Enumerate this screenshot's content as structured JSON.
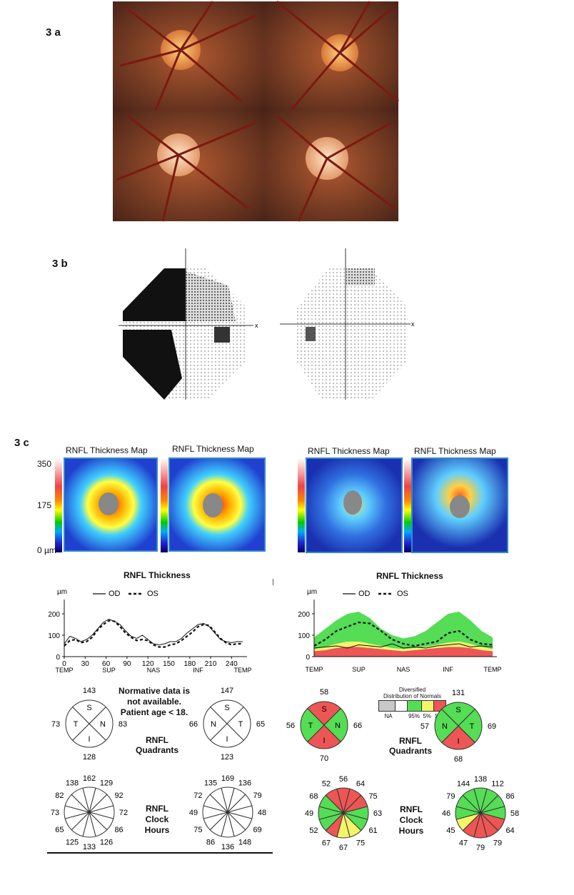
{
  "labels": {
    "a": "3 a",
    "b": "3 b",
    "c": "3 c"
  },
  "fundus": {
    "count": 4
  },
  "thickness_maps": {
    "title": "RNFL Thickness Map",
    "scale_ticks": [
      "350",
      "175",
      "0 µm"
    ]
  },
  "left_block": {
    "chart_title": "RNFL Thickness",
    "unit": "µm",
    "legend_od": "OD",
    "legend_os": "OS",
    "note_lines": [
      "Normative data is",
      "not available.",
      "Patient age < 18."
    ],
    "quadrants_label": [
      "RNFL",
      "Quadrants"
    ],
    "clock_label": [
      "RNFL",
      "Clock",
      "Hours"
    ],
    "od_quadrants": {
      "S": "143",
      "N": "83",
      "I": "128",
      "T": "73"
    },
    "os_quadrants": {
      "S": "147",
      "T": "65",
      "I": "123",
      "N": "66"
    },
    "od_clock": [
      "162",
      "129",
      "92",
      "72",
      "86",
      "126",
      "133",
      "125",
      "65",
      "73",
      "82",
      "138"
    ],
    "os_clock": [
      "169",
      "136",
      "79",
      "48",
      "69",
      "148",
      "136",
      "86",
      "75",
      "49",
      "72",
      "135"
    ]
  },
  "right_block": {
    "chart_title": "RNFL Thickness",
    "unit": "µm",
    "legend_od": "OD",
    "legend_os": "OS",
    "dist_title": [
      "Diversified",
      "Distribution of Normals"
    ],
    "dist_labels": [
      "NA",
      "95%",
      "5%",
      "1%"
    ],
    "quadrants_label": [
      "RNFL",
      "Quadrants"
    ],
    "clock_label": [
      "RNFL",
      "Clock",
      "Hours"
    ],
    "od_quadrants": {
      "S": "58",
      "N": "66",
      "I": "70",
      "T": "56"
    },
    "os_quadrants": {
      "S": "131",
      "T": "69",
      "I": "68",
      "N": "57"
    },
    "od_clock": [
      "56",
      "64",
      "75",
      "63",
      "61",
      "75",
      "67",
      "67",
      "52",
      "49",
      "68",
      "52"
    ],
    "os_clock": [
      "138",
      "112",
      "86",
      "58",
      "64",
      "79",
      "79",
      "47",
      "45",
      "46",
      "79",
      "144"
    ]
  },
  "colors": {
    "normal_green": "#55dd55",
    "borderline_yellow": "#f4f46a",
    "abnormal_red": "#ee5555",
    "na_grey": "#c8c8c8"
  },
  "chart_data": [
    {
      "type": "line",
      "title": "RNFL Thickness",
      "ylabel": "µm",
      "x_ticks": [
        "0",
        "30",
        "60",
        "90",
        "120",
        "150",
        "180",
        "210",
        "240"
      ],
      "x_cat_labels": [
        "TEMP",
        "SUP",
        "NAS",
        "INF",
        "TEMP"
      ],
      "y_ticks": [
        "0",
        "100",
        "200"
      ],
      "ylim": [
        0,
        250
      ],
      "xlim": [
        0,
        256
      ],
      "series": [
        {
          "name": "OD",
          "style": "solid",
          "x": [
            0,
            8,
            16,
            24,
            32,
            40,
            48,
            56,
            64,
            72,
            80,
            88,
            96,
            104,
            112,
            120,
            128,
            136,
            144,
            152,
            160,
            168,
            176,
            184,
            192,
            200,
            208,
            216,
            224,
            232,
            240,
            248,
            256
          ],
          "y": [
            60,
            95,
            85,
            70,
            80,
            100,
            130,
            160,
            175,
            165,
            150,
            120,
            95,
            85,
            100,
            80,
            60,
            55,
            60,
            70,
            70,
            85,
            110,
            130,
            150,
            155,
            140,
            110,
            80,
            70,
            65,
            70,
            70
          ]
        },
        {
          "name": "OS",
          "style": "dashed",
          "x": [
            0,
            8,
            16,
            24,
            32,
            40,
            48,
            56,
            64,
            72,
            80,
            88,
            96,
            104,
            112,
            120,
            128,
            136,
            144,
            152,
            160,
            168,
            176,
            184,
            192,
            200,
            208,
            216,
            224,
            232,
            240,
            248,
            256
          ],
          "y": [
            50,
            75,
            80,
            65,
            70,
            90,
            125,
            150,
            168,
            165,
            140,
            110,
            90,
            75,
            80,
            75,
            55,
            45,
            45,
            55,
            60,
            75,
            95,
            115,
            140,
            150,
            145,
            115,
            85,
            65,
            55,
            60,
            60
          ]
        }
      ]
    },
    {
      "type": "line",
      "title": "RNFL Thickness",
      "ylabel": "µm",
      "x_cat_labels": [
        "TEMP",
        "SUP",
        "NAS",
        "INF",
        "TEMP"
      ],
      "y_ticks": [
        "0",
        "100",
        "200"
      ],
      "ylim": [
        0,
        250
      ],
      "xlim": [
        0,
        256
      ],
      "series": [
        {
          "name": "OD",
          "style": "solid",
          "x": [
            0,
            16,
            32,
            48,
            64,
            80,
            96,
            112,
            128,
            144,
            160,
            176,
            192,
            208,
            224,
            240,
            256
          ],
          "y": [
            40,
            45,
            50,
            40,
            55,
            50,
            45,
            60,
            40,
            45,
            40,
            50,
            55,
            60,
            45,
            50,
            45
          ]
        },
        {
          "name": "OS",
          "style": "dashed",
          "x": [
            0,
            16,
            32,
            48,
            64,
            80,
            96,
            112,
            128,
            144,
            160,
            176,
            192,
            208,
            224,
            240,
            256
          ],
          "y": [
            50,
            80,
            120,
            140,
            160,
            155,
            120,
            80,
            60,
            50,
            60,
            70,
            110,
            120,
            80,
            60,
            55
          ]
        }
      ],
      "normal_bands": {
        "x": [
          0,
          16,
          32,
          48,
          64,
          80,
          96,
          112,
          128,
          144,
          160,
          176,
          192,
          208,
          224,
          240,
          256
        ],
        "p1": [
          25,
          30,
          40,
          45,
          45,
          40,
          35,
          30,
          25,
          30,
          35,
          40,
          45,
          45,
          40,
          30,
          25
        ],
        "p5": [
          35,
          45,
          60,
          70,
          70,
          60,
          50,
          40,
          35,
          40,
          45,
          55,
          65,
          70,
          60,
          45,
          35
        ],
        "p95": [
          90,
          130,
          170,
          200,
          210,
          180,
          130,
          100,
          85,
          95,
          120,
          160,
          200,
          210,
          170,
          120,
          90
        ]
      }
    }
  ]
}
